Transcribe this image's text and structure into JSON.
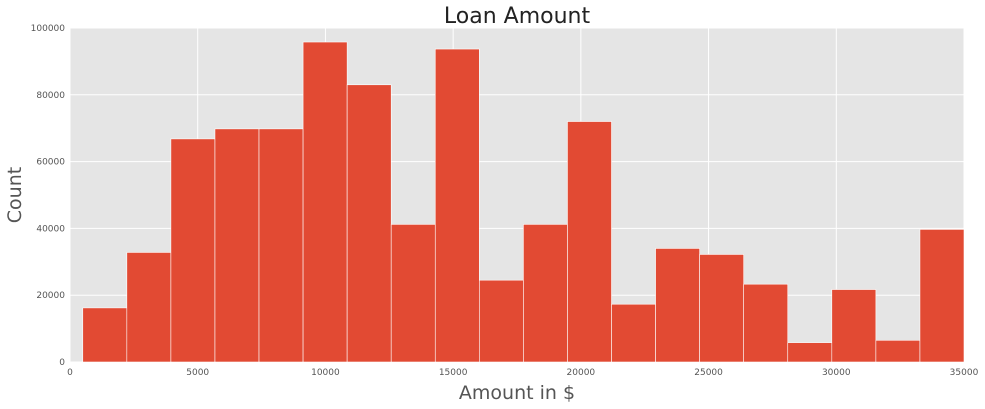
{
  "chart_data": {
    "type": "bar",
    "title": "Loan Amount",
    "xlabel": "Amount in $",
    "ylabel": "Count",
    "xlim": [
      0,
      35000
    ],
    "ylim": [
      0,
      100000
    ],
    "xticks": [
      0,
      5000,
      10000,
      15000,
      20000,
      25000,
      30000,
      35000
    ],
    "yticks": [
      0,
      20000,
      40000,
      60000,
      80000,
      100000
    ],
    "bin_edges": [
      500,
      2225,
      3950,
      5675,
      7400,
      9125,
      10850,
      12575,
      14300,
      16025,
      17750,
      19475,
      21200,
      22925,
      24650,
      26375,
      28100,
      29825,
      31550,
      33275,
      35000
    ],
    "values": [
      16200,
      32800,
      66800,
      69800,
      69800,
      95800,
      83000,
      41200,
      93700,
      24500,
      41200,
      72000,
      17300,
      34000,
      32200,
      23300,
      5800,
      21700,
      6500,
      39700
    ],
    "grid": true,
    "colors": {
      "bar": "#E24A33",
      "background": "#E5E5E5",
      "grid": "#FFFFFF"
    }
  }
}
